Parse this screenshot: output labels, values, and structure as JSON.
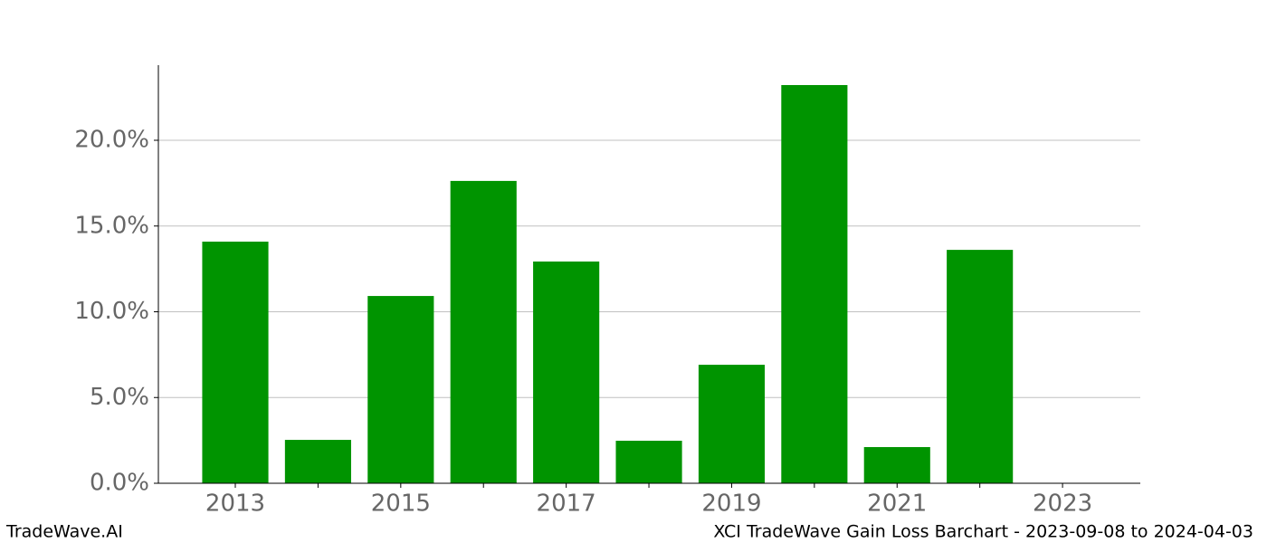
{
  "chart_data": {
    "type": "bar",
    "x": [
      2013,
      2014,
      2015,
      2016,
      2017,
      2018,
      2019,
      2020,
      2021,
      2022,
      2023
    ],
    "values": [
      14.09,
      2.53,
      10.92,
      17.63,
      12.93,
      2.48,
      6.91,
      23.22,
      2.11,
      13.61,
      0
    ],
    "color": "#009400",
    "xlim": [
      2012.07,
      2023.94
    ],
    "xticks": [
      2013,
      2015,
      2017,
      2019,
      2021,
      2023
    ],
    "ylim": [
      0,
      24.38
    ],
    "yticks": [
      {
        "value": 0,
        "label": "0.0%"
      },
      {
        "value": 5,
        "label": "5.0%"
      },
      {
        "value": 10,
        "label": "10.0%"
      },
      {
        "value": 15,
        "label": "15.0%"
      },
      {
        "value": 20,
        "label": "20.0%"
      }
    ],
    "grid": true,
    "footer_left": "TradeWave.AI",
    "footer_right": "XCI TradeWave Gain Loss Barchart - 2023-09-08 to 2024-04-03"
  }
}
